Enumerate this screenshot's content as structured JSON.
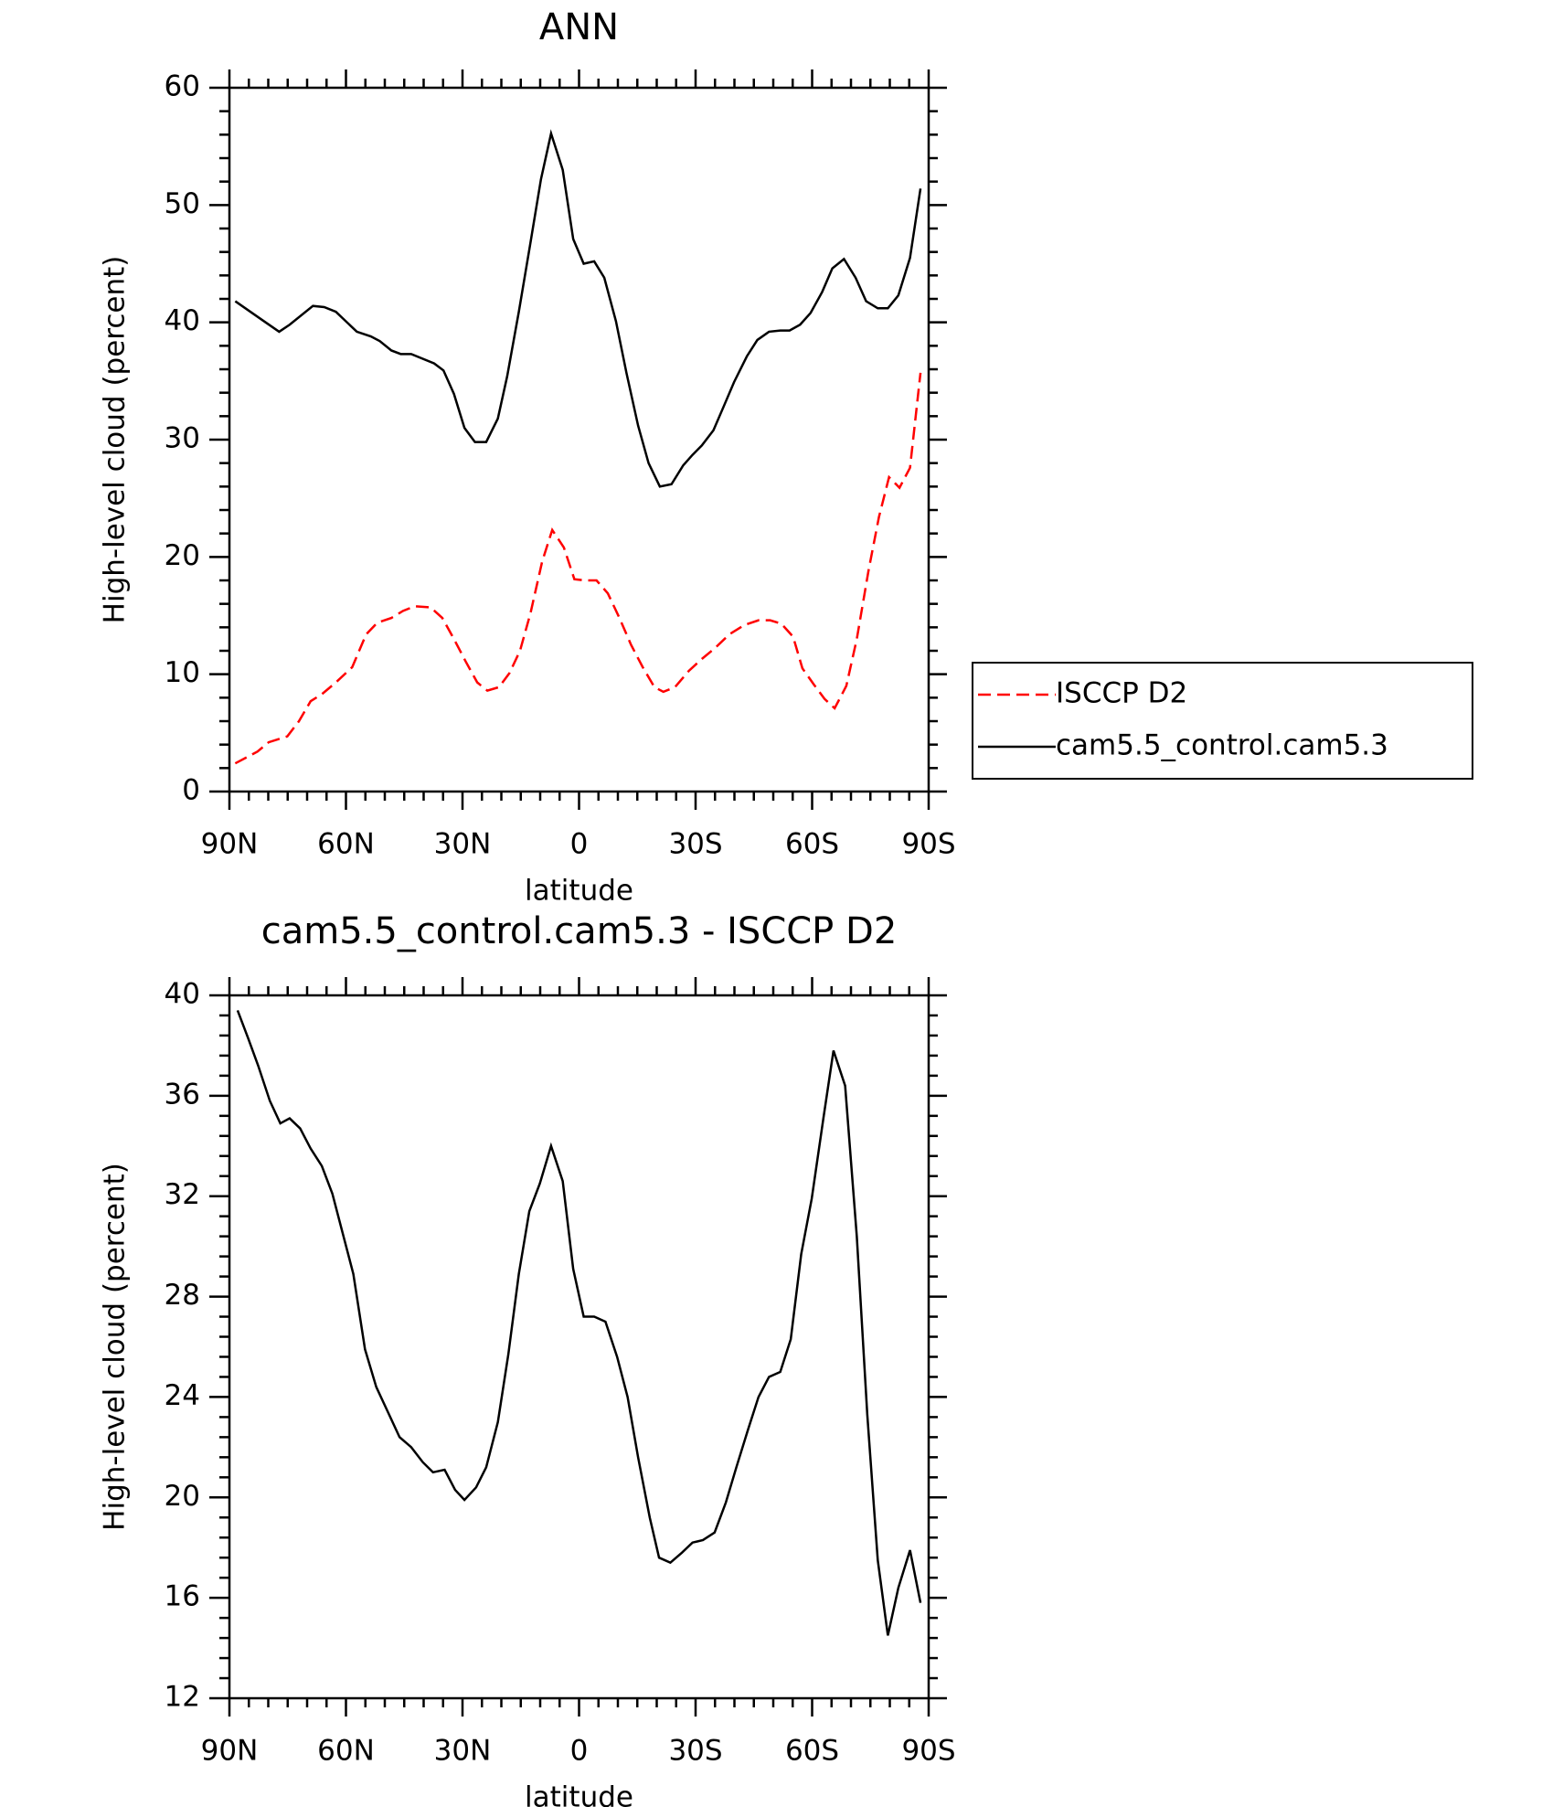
{
  "chart_data": [
    {
      "type": "line",
      "title": "ANN",
      "xlabel": "latitude",
      "ylabel": "High-level cloud (percent)",
      "xlim": [
        90,
        -90
      ],
      "xticks": [
        {
          "value": 90,
          "label": "90N"
        },
        {
          "value": 60,
          "label": "60N"
        },
        {
          "value": 30,
          "label": "30N"
        },
        0,
        {
          "value": -30,
          "label": "30S"
        },
        {
          "value": -60,
          "label": "60S"
        },
        {
          "value": -90,
          "label": "90S"
        }
      ],
      "ylim": [
        0,
        60
      ],
      "yticks": [
        0,
        10,
        20,
        30,
        40,
        50,
        60
      ],
      "legend": "outside-right",
      "series": [
        {
          "name": "ISCCP D2",
          "color": "#ff0000",
          "style": "dashed",
          "x": [
            88.5,
            82.8,
            79.9,
            75.1,
            72.1,
            69.1,
            66.2,
            62.6,
            58.4,
            54.8,
            51.9,
            48.3,
            45.3,
            42.3,
            38.2,
            35.2,
            32.2,
            29.2,
            26.2,
            23.6,
            20.6,
            17.9,
            15.2,
            12.5,
            9.5,
            6.9,
            3.9,
            1.2,
            -1.5,
            -4.5,
            -7.4,
            -10.4,
            -13.4,
            -16.4,
            -19.4,
            -21.7,
            -24.7,
            -28.3,
            -31.6,
            -34.9,
            -38.7,
            -42.6,
            -46.2,
            -49.2,
            -52.1,
            -55.1,
            -57.5,
            -60.5,
            -63.2,
            -65.8,
            -68.8,
            -71.5,
            -74.5,
            -77.2,
            -79.8,
            -82.5,
            -85.2,
            -87.9
          ],
          "values": [
            2.4,
            3.4,
            4.2,
            4.7,
            6.0,
            7.7,
            8.3,
            9.3,
            10.6,
            13.4,
            14.4,
            14.8,
            15.4,
            15.8,
            15.7,
            14.8,
            13.0,
            11.1,
            9.3,
            8.6,
            8.9,
            10.1,
            12.0,
            15.2,
            19.6,
            22.3,
            20.8,
            18.1,
            18.0,
            18.0,
            16.9,
            14.8,
            12.5,
            10.6,
            8.9,
            8.5,
            8.9,
            10.3,
            11.3,
            12.2,
            13.4,
            14.2,
            14.6,
            14.6,
            14.3,
            13.2,
            10.5,
            9.1,
            7.9,
            7.1,
            9.0,
            13.0,
            18.8,
            23.4,
            26.8,
            25.9,
            27.6,
            35.7
          ]
        },
        {
          "name": "cam5.5_control.cam5.3",
          "color": "#000000",
          "style": "solid",
          "x": [
            88.5,
            82.0,
            77.2,
            74.5,
            68.5,
            65.6,
            62.6,
            57.2,
            53.6,
            51.3,
            48.3,
            45.9,
            43.2,
            37.3,
            34.9,
            32.2,
            29.5,
            26.8,
            23.9,
            20.9,
            18.5,
            15.5,
            12.5,
            9.8,
            7.2,
            4.2,
            1.5,
            -1.2,
            -3.9,
            -6.5,
            -9.5,
            -12.2,
            -15.2,
            -17.9,
            -20.8,
            -23.8,
            -26.8,
            -29.2,
            -31.6,
            -34.6,
            -37.2,
            -39.9,
            -43.2,
            -45.9,
            -48.9,
            -51.8,
            -54.2,
            -56.9,
            -59.6,
            -62.6,
            -65.2,
            -68.2,
            -71.2,
            -73.9,
            -76.9,
            -79.5,
            -82.2,
            -85.2,
            -87.9
          ],
          "values": [
            41.8,
            40.3,
            39.2,
            39.8,
            41.4,
            41.3,
            40.9,
            39.2,
            38.8,
            38.4,
            37.6,
            37.3,
            37.3,
            36.5,
            35.9,
            33.9,
            31.0,
            29.8,
            29.8,
            31.8,
            35.4,
            40.9,
            46.8,
            52.2,
            56.1,
            53.0,
            47.1,
            45.0,
            45.2,
            43.8,
            40.1,
            35.7,
            31.2,
            28.0,
            26.0,
            26.2,
            27.8,
            28.7,
            29.5,
            30.8,
            32.8,
            34.9,
            37.1,
            38.5,
            39.2,
            39.3,
            39.3,
            39.8,
            40.8,
            42.6,
            44.6,
            45.4,
            43.8,
            41.8,
            41.2,
            41.2,
            42.3,
            45.5,
            51.4
          ]
        }
      ]
    },
    {
      "type": "line",
      "title": "cam5.5_control.cam5.3 - ISCCP D2",
      "xlabel": "latitude",
      "ylabel": "High-level cloud (percent)",
      "xlim": [
        90,
        -90
      ],
      "xticks": [
        {
          "value": 90,
          "label": "90N"
        },
        {
          "value": 60,
          "label": "60N"
        },
        {
          "value": 30,
          "label": "30N"
        },
        0,
        {
          "value": -30,
          "label": "30S"
        },
        {
          "value": -60,
          "label": "60S"
        },
        {
          "value": -90,
          "label": "90S"
        }
      ],
      "ylim": [
        12,
        40
      ],
      "yticks": [
        12,
        16,
        20,
        24,
        28,
        32,
        36,
        40
      ],
      "color": "#000000",
      "x": [
        87.9,
        85.2,
        82.6,
        79.6,
        76.9,
        74.5,
        71.8,
        69.1,
        66.2,
        63.5,
        60.8,
        58.1,
        55.1,
        52.2,
        49.2,
        46.2,
        43.2,
        40.2,
        37.6,
        34.6,
        31.9,
        29.5,
        26.5,
        23.9,
        20.9,
        18.2,
        15.5,
        12.8,
        10.1,
        7.2,
        4.2,
        1.5,
        -1.2,
        -3.9,
        -6.8,
        -9.8,
        -12.5,
        -15.2,
        -18.2,
        -20.6,
        -23.5,
        -26.5,
        -29.2,
        -31.9,
        -34.9,
        -37.8,
        -40.5,
        -43.5,
        -46.2,
        -48.9,
        -51.8,
        -54.5,
        -57.2,
        -59.9,
        -62.9,
        -65.5,
        -68.5,
        -71.5,
        -74.2,
        -76.9,
        -79.5,
        -82.2,
        -85.2,
        -87.9
      ],
      "values": [
        39.4,
        38.3,
        37.2,
        35.8,
        34.9,
        35.1,
        34.7,
        33.9,
        33.2,
        32.1,
        30.5,
        28.9,
        25.9,
        24.4,
        23.4,
        22.4,
        22.0,
        21.4,
        21.0,
        21.1,
        20.3,
        19.9,
        20.4,
        21.2,
        23.0,
        25.7,
        28.9,
        31.4,
        32.5,
        34.0,
        32.6,
        29.1,
        27.2,
        27.2,
        27.0,
        25.6,
        24.0,
        21.6,
        19.2,
        17.6,
        17.4,
        17.8,
        18.2,
        18.3,
        18.6,
        19.8,
        21.2,
        22.7,
        24.0,
        24.8,
        25.0,
        26.3,
        29.7,
        31.9,
        35.1,
        37.8,
        36.4,
        30.4,
        23.3,
        17.5,
        14.5,
        16.4,
        17.9,
        15.8
      ]
    }
  ]
}
